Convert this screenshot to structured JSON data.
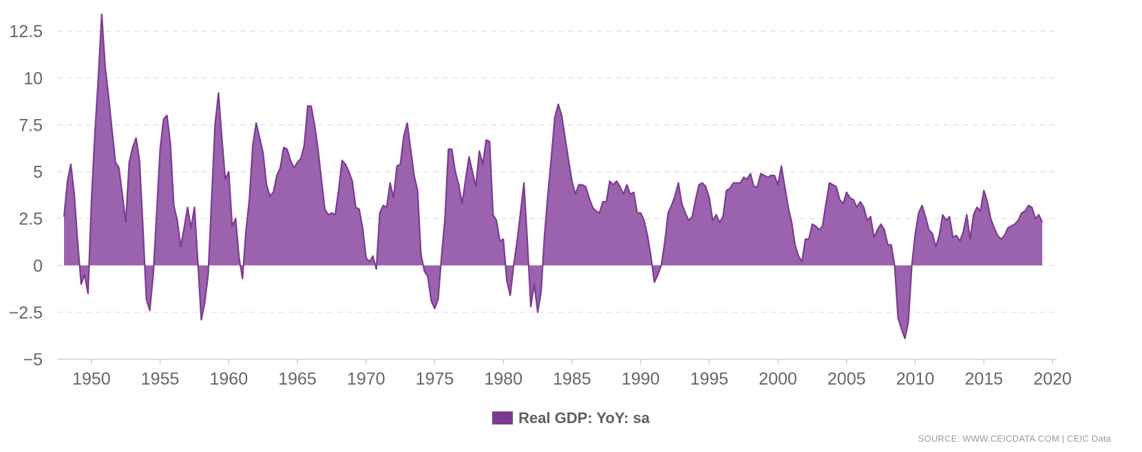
{
  "chart_data": {
    "type": "area",
    "title": "",
    "xlabel": "",
    "ylabel": "",
    "xlim": [
      1947.5,
      2020.3
    ],
    "ylim": [
      -5,
      13.5
    ],
    "x_ticks": [
      1950,
      1955,
      1960,
      1965,
      1970,
      1975,
      1980,
      1985,
      1990,
      1995,
      2000,
      2005,
      2010,
      2015,
      2020
    ],
    "y_ticks": [
      -5,
      -2.5,
      0,
      2.5,
      5,
      7.5,
      10,
      12.5
    ],
    "y_tick_labels": [
      "−5",
      "−2.5",
      "0",
      "2.5",
      "5",
      "7.5",
      "10",
      "12.5"
    ],
    "grid": "horizontal dashed",
    "legend_position": "bottom-center",
    "colors": {
      "fill": "#9b62ad",
      "stroke": "#7b3b8f",
      "grid": "#d9d9d9",
      "axis": "#d0d0d0",
      "tick_text": "#666666"
    },
    "series": [
      {
        "name": "Real GDP: YoY: sa",
        "points": [
          [
            1948.0,
            2.6
          ],
          [
            1948.25,
            4.5
          ],
          [
            1948.5,
            5.4
          ],
          [
            1948.75,
            3.8
          ],
          [
            1949.0,
            1.2
          ],
          [
            1949.25,
            -1.0
          ],
          [
            1949.5,
            -0.5
          ],
          [
            1949.75,
            -1.5
          ],
          [
            1950.0,
            3.5
          ],
          [
            1950.25,
            7.0
          ],
          [
            1950.5,
            10.0
          ],
          [
            1950.75,
            13.4
          ],
          [
            1951.0,
            10.6
          ],
          [
            1951.25,
            9.0
          ],
          [
            1951.5,
            7.2
          ],
          [
            1951.75,
            5.5
          ],
          [
            1952.0,
            5.2
          ],
          [
            1952.25,
            3.8
          ],
          [
            1952.5,
            2.3
          ],
          [
            1952.75,
            5.5
          ],
          [
            1953.0,
            6.3
          ],
          [
            1953.25,
            6.8
          ],
          [
            1953.5,
            5.6
          ],
          [
            1953.75,
            2.0
          ],
          [
            1954.0,
            -1.8
          ],
          [
            1954.25,
            -2.4
          ],
          [
            1954.5,
            -0.5
          ],
          [
            1954.75,
            2.8
          ],
          [
            1955.0,
            6.2
          ],
          [
            1955.25,
            7.8
          ],
          [
            1955.5,
            8.0
          ],
          [
            1955.75,
            6.5
          ],
          [
            1956.0,
            3.2
          ],
          [
            1956.25,
            2.4
          ],
          [
            1956.5,
            1.0
          ],
          [
            1956.75,
            2.0
          ],
          [
            1957.0,
            3.1
          ],
          [
            1957.25,
            2.0
          ],
          [
            1957.5,
            3.1
          ],
          [
            1957.75,
            0.2
          ],
          [
            1958.0,
            -2.9
          ],
          [
            1958.25,
            -2.0
          ],
          [
            1958.5,
            -0.5
          ],
          [
            1958.75,
            3.5
          ],
          [
            1959.0,
            7.5
          ],
          [
            1959.25,
            9.2
          ],
          [
            1959.5,
            6.8
          ],
          [
            1959.75,
            4.6
          ],
          [
            1960.0,
            5.0
          ],
          [
            1960.25,
            2.1
          ],
          [
            1960.5,
            2.5
          ],
          [
            1960.75,
            0.4
          ],
          [
            1961.0,
            -0.7
          ],
          [
            1961.25,
            1.8
          ],
          [
            1961.5,
            3.5
          ],
          [
            1961.75,
            6.4
          ],
          [
            1962.0,
            7.6
          ],
          [
            1962.25,
            6.8
          ],
          [
            1962.5,
            6.0
          ],
          [
            1962.75,
            4.3
          ],
          [
            1963.0,
            3.7
          ],
          [
            1963.25,
            3.9
          ],
          [
            1963.5,
            4.8
          ],
          [
            1963.75,
            5.2
          ],
          [
            1964.0,
            6.3
          ],
          [
            1964.25,
            6.2
          ],
          [
            1964.5,
            5.6
          ],
          [
            1964.75,
            5.2
          ],
          [
            1965.0,
            5.5
          ],
          [
            1965.25,
            5.7
          ],
          [
            1965.5,
            6.4
          ],
          [
            1965.75,
            8.5
          ],
          [
            1966.0,
            8.5
          ],
          [
            1966.25,
            7.5
          ],
          [
            1966.5,
            6.2
          ],
          [
            1966.75,
            4.6
          ],
          [
            1967.0,
            3.0
          ],
          [
            1967.25,
            2.7
          ],
          [
            1967.5,
            2.8
          ],
          [
            1967.75,
            2.7
          ],
          [
            1968.0,
            4.0
          ],
          [
            1968.25,
            5.6
          ],
          [
            1968.5,
            5.4
          ],
          [
            1968.75,
            5.0
          ],
          [
            1969.0,
            4.5
          ],
          [
            1969.25,
            3.1
          ],
          [
            1969.5,
            3.0
          ],
          [
            1969.75,
            2.0
          ],
          [
            1970.0,
            0.4
          ],
          [
            1970.25,
            0.2
          ],
          [
            1970.5,
            0.5
          ],
          [
            1970.75,
            -0.2
          ],
          [
            1971.0,
            2.8
          ],
          [
            1971.25,
            3.2
          ],
          [
            1971.5,
            3.1
          ],
          [
            1971.75,
            4.4
          ],
          [
            1972.0,
            3.6
          ],
          [
            1972.25,
            5.3
          ],
          [
            1972.5,
            5.4
          ],
          [
            1972.75,
            6.9
          ],
          [
            1973.0,
            7.6
          ],
          [
            1973.25,
            6.2
          ],
          [
            1973.5,
            4.8
          ],
          [
            1973.75,
            4.0
          ],
          [
            1974.0,
            0.6
          ],
          [
            1974.25,
            -0.3
          ],
          [
            1974.5,
            -0.6
          ],
          [
            1974.75,
            -1.9
          ],
          [
            1975.0,
            -2.3
          ],
          [
            1975.25,
            -1.8
          ],
          [
            1975.5,
            0.5
          ],
          [
            1975.75,
            2.5
          ],
          [
            1976.0,
            6.2
          ],
          [
            1976.25,
            6.2
          ],
          [
            1976.5,
            5.0
          ],
          [
            1976.75,
            4.3
          ],
          [
            1977.0,
            3.3
          ],
          [
            1977.25,
            4.6
          ],
          [
            1977.5,
            5.8
          ],
          [
            1977.75,
            5.0
          ],
          [
            1978.0,
            4.2
          ],
          [
            1978.25,
            6.1
          ],
          [
            1978.5,
            5.4
          ],
          [
            1978.75,
            6.7
          ],
          [
            1979.0,
            6.6
          ],
          [
            1979.25,
            2.7
          ],
          [
            1979.5,
            2.4
          ],
          [
            1979.75,
            1.3
          ],
          [
            1980.0,
            1.4
          ],
          [
            1980.25,
            -0.8
          ],
          [
            1980.5,
            -1.6
          ],
          [
            1980.75,
            0.0
          ],
          [
            1981.0,
            1.3
          ],
          [
            1981.25,
            2.8
          ],
          [
            1981.5,
            4.4
          ],
          [
            1981.75,
            1.3
          ],
          [
            1982.0,
            -2.2
          ],
          [
            1982.25,
            -1.0
          ],
          [
            1982.5,
            -2.5
          ],
          [
            1982.75,
            -1.4
          ],
          [
            1983.0,
            1.6
          ],
          [
            1983.25,
            3.8
          ],
          [
            1983.5,
            5.8
          ],
          [
            1983.75,
            7.9
          ],
          [
            1984.0,
            8.6
          ],
          [
            1984.25,
            8.0
          ],
          [
            1984.5,
            6.8
          ],
          [
            1984.75,
            5.6
          ],
          [
            1985.0,
            4.5
          ],
          [
            1985.25,
            3.8
          ],
          [
            1985.5,
            4.3
          ],
          [
            1985.75,
            4.3
          ],
          [
            1986.0,
            4.2
          ],
          [
            1986.25,
            3.6
          ],
          [
            1986.5,
            3.1
          ],
          [
            1986.75,
            2.9
          ],
          [
            1987.0,
            2.8
          ],
          [
            1987.25,
            3.4
          ],
          [
            1987.5,
            3.4
          ],
          [
            1987.75,
            4.5
          ],
          [
            1988.0,
            4.3
          ],
          [
            1988.25,
            4.5
          ],
          [
            1988.5,
            4.2
          ],
          [
            1988.75,
            3.8
          ],
          [
            1989.0,
            4.3
          ],
          [
            1989.25,
            3.8
          ],
          [
            1989.5,
            3.9
          ],
          [
            1989.75,
            2.8
          ],
          [
            1990.0,
            2.8
          ],
          [
            1990.25,
            2.4
          ],
          [
            1990.5,
            1.6
          ],
          [
            1990.75,
            0.5
          ],
          [
            1991.0,
            -0.9
          ],
          [
            1991.25,
            -0.5
          ],
          [
            1991.5,
            0.0
          ],
          [
            1991.75,
            1.2
          ],
          [
            1992.0,
            2.8
          ],
          [
            1992.25,
            3.2
          ],
          [
            1992.5,
            3.7
          ],
          [
            1992.75,
            4.4
          ],
          [
            1993.0,
            3.3
          ],
          [
            1993.25,
            2.8
          ],
          [
            1993.5,
            2.4
          ],
          [
            1993.75,
            2.6
          ],
          [
            1994.0,
            3.5
          ],
          [
            1994.25,
            4.3
          ],
          [
            1994.5,
            4.4
          ],
          [
            1994.75,
            4.2
          ],
          [
            1995.0,
            3.6
          ],
          [
            1995.25,
            2.4
          ],
          [
            1995.5,
            2.7
          ],
          [
            1995.75,
            2.3
          ],
          [
            1996.0,
            2.6
          ],
          [
            1996.25,
            4.0
          ],
          [
            1996.5,
            4.1
          ],
          [
            1996.75,
            4.4
          ],
          [
            1997.0,
            4.4
          ],
          [
            1997.25,
            4.4
          ],
          [
            1997.5,
            4.7
          ],
          [
            1997.75,
            4.6
          ],
          [
            1998.0,
            4.9
          ],
          [
            1998.25,
            4.2
          ],
          [
            1998.5,
            4.2
          ],
          [
            1998.75,
            4.9
          ],
          [
            1999.0,
            4.8
          ],
          [
            1999.25,
            4.7
          ],
          [
            1999.5,
            4.8
          ],
          [
            1999.75,
            4.8
          ],
          [
            2000.0,
            4.3
          ],
          [
            2000.25,
            5.3
          ],
          [
            2000.5,
            4.2
          ],
          [
            2000.75,
            3.1
          ],
          [
            2001.0,
            2.3
          ],
          [
            2001.25,
            1.1
          ],
          [
            2001.5,
            0.5
          ],
          [
            2001.75,
            0.2
          ],
          [
            2002.0,
            1.4
          ],
          [
            2002.25,
            1.4
          ],
          [
            2002.5,
            2.2
          ],
          [
            2002.75,
            2.1
          ],
          [
            2003.0,
            1.9
          ],
          [
            2003.25,
            2.1
          ],
          [
            2003.5,
            3.3
          ],
          [
            2003.75,
            4.4
          ],
          [
            2004.0,
            4.3
          ],
          [
            2004.25,
            4.2
          ],
          [
            2004.5,
            3.5
          ],
          [
            2004.75,
            3.3
          ],
          [
            2005.0,
            3.9
          ],
          [
            2005.25,
            3.6
          ],
          [
            2005.5,
            3.5
          ],
          [
            2005.75,
            3.1
          ],
          [
            2006.0,
            3.4
          ],
          [
            2006.25,
            3.1
          ],
          [
            2006.5,
            2.4
          ],
          [
            2006.75,
            2.6
          ],
          [
            2007.0,
            1.5
          ],
          [
            2007.25,
            1.9
          ],
          [
            2007.5,
            2.2
          ],
          [
            2007.75,
            1.9
          ],
          [
            2008.0,
            1.1
          ],
          [
            2008.25,
            1.1
          ],
          [
            2008.5,
            0.0
          ],
          [
            2008.75,
            -2.8
          ],
          [
            2009.0,
            -3.4
          ],
          [
            2009.25,
            -3.9
          ],
          [
            2009.5,
            -3.0
          ],
          [
            2009.75,
            0.0
          ],
          [
            2010.0,
            1.7
          ],
          [
            2010.25,
            2.8
          ],
          [
            2010.5,
            3.2
          ],
          [
            2010.75,
            2.6
          ],
          [
            2011.0,
            1.9
          ],
          [
            2011.25,
            1.7
          ],
          [
            2011.5,
            1.0
          ],
          [
            2011.75,
            1.6
          ],
          [
            2012.0,
            2.7
          ],
          [
            2012.25,
            2.4
          ],
          [
            2012.5,
            2.6
          ],
          [
            2012.75,
            1.5
          ],
          [
            2013.0,
            1.6
          ],
          [
            2013.25,
            1.3
          ],
          [
            2013.5,
            1.8
          ],
          [
            2013.75,
            2.7
          ],
          [
            2014.0,
            1.4
          ],
          [
            2014.25,
            2.7
          ],
          [
            2014.5,
            3.1
          ],
          [
            2014.75,
            2.9
          ],
          [
            2015.0,
            4.0
          ],
          [
            2015.25,
            3.4
          ],
          [
            2015.5,
            2.5
          ],
          [
            2015.75,
            2.0
          ],
          [
            2016.0,
            1.6
          ],
          [
            2016.25,
            1.4
          ],
          [
            2016.5,
            1.6
          ],
          [
            2016.75,
            2.0
          ],
          [
            2017.0,
            2.1
          ],
          [
            2017.25,
            2.2
          ],
          [
            2017.5,
            2.4
          ],
          [
            2017.75,
            2.8
          ],
          [
            2018.0,
            2.9
          ],
          [
            2018.25,
            3.2
          ],
          [
            2018.5,
            3.1
          ],
          [
            2018.75,
            2.5
          ],
          [
            2019.0,
            2.7
          ],
          [
            2019.25,
            2.3
          ]
        ]
      }
    ],
    "source": "SOURCE: WWW.CEICDATA.COM | CEIC Data"
  }
}
